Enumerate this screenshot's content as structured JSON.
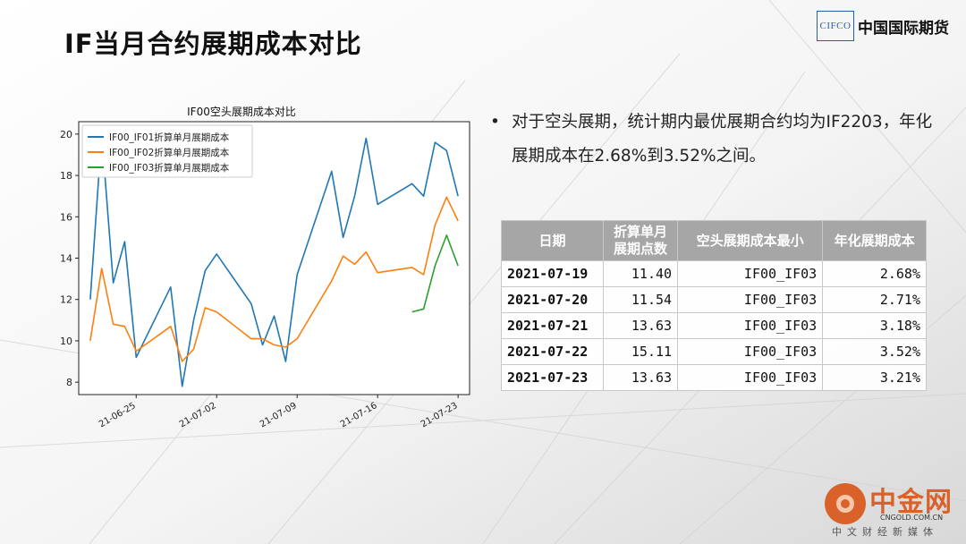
{
  "slide": {
    "title": "IF当月合约展期成本对比"
  },
  "brand": {
    "logo_text": "CIFCO",
    "name": "中国国际期货"
  },
  "bullet": {
    "symbol": "•",
    "text": "对于空头展期，统计期内最优展期合约均为IF2203，年化展期成本在2.68%到3.52%之间。"
  },
  "table": {
    "headers": [
      "日期",
      "折算单月展期点数",
      "空头展期成本最小",
      "年化展期成本"
    ],
    "rows": [
      [
        "2021-07-19",
        "11.40",
        "IF00_IF03",
        "2.68%"
      ],
      [
        "2021-07-20",
        "11.54",
        "IF00_IF03",
        "2.71%"
      ],
      [
        "2021-07-21",
        "13.63",
        "IF00_IF03",
        "3.18%"
      ],
      [
        "2021-07-22",
        "15.11",
        "IF00_IF03",
        "3.52%"
      ],
      [
        "2021-07-23",
        "13.63",
        "IF00_IF03",
        "3.21%"
      ]
    ]
  },
  "chart_data": {
    "type": "line",
    "title": "IF00空头展期成本对比",
    "xlabel": "",
    "ylabel": "",
    "x": [
      "2021-06-21",
      "2021-06-22",
      "2021-06-23",
      "2021-06-24",
      "2021-06-25",
      "2021-06-28",
      "2021-06-29",
      "2021-06-30",
      "2021-07-01",
      "2021-07-02",
      "2021-07-05",
      "2021-07-06",
      "2021-07-07",
      "2021-07-08",
      "2021-07-09",
      "2021-07-12",
      "2021-07-13",
      "2021-07-14",
      "2021-07-15",
      "2021-07-16",
      "2021-07-19",
      "2021-07-20",
      "2021-07-21",
      "2021-07-22",
      "2021-07-23"
    ],
    "x_ticks": [
      "21-06-25",
      "21-07-02",
      "21-07-09",
      "21-07-16",
      "21-07-23"
    ],
    "x_tick_dates": [
      "2021-06-25",
      "2021-07-02",
      "2021-07-09",
      "2021-07-16",
      "2021-07-23"
    ],
    "xlim": [
      "2021-06-20",
      "2021-07-24"
    ],
    "ylim": [
      7.4,
      20.6
    ],
    "y_ticks": [
      8,
      10,
      12,
      14,
      16,
      18,
      20
    ],
    "grid": false,
    "legend_position": "top-left",
    "series": [
      {
        "name": "IF00_IF01折算单月展期成本",
        "color": "#1f77b4",
        "values": [
          12.0,
          20.0,
          12.8,
          14.8,
          9.2,
          12.6,
          7.8,
          11.0,
          13.4,
          14.2,
          11.8,
          9.8,
          11.2,
          9.0,
          13.2,
          18.2,
          15.0,
          17.0,
          19.8,
          16.6,
          17.6,
          17.0,
          19.6,
          19.2,
          17.0
        ]
      },
      {
        "name": "IF00_IF02折算单月展期成本",
        "color": "#ff7f0e",
        "values": [
          10.0,
          13.5,
          10.8,
          10.7,
          9.5,
          10.7,
          9.0,
          9.6,
          11.6,
          11.4,
          10.1,
          10.1,
          9.8,
          9.7,
          10.1,
          12.9,
          14.1,
          13.7,
          14.3,
          13.3,
          13.55,
          13.2,
          15.6,
          16.95,
          15.8
        ]
      },
      {
        "name": "IF00_IF03折算单月展期成本",
        "color": "#2ca02c",
        "values": [
          null,
          null,
          null,
          null,
          null,
          null,
          null,
          null,
          null,
          null,
          null,
          null,
          null,
          null,
          null,
          null,
          null,
          null,
          null,
          null,
          11.4,
          11.54,
          13.63,
          15.11,
          13.63
        ]
      }
    ]
  },
  "watermark": {
    "name": "中金网",
    "domain": "CNGOLD.COM.CN",
    "tagline": "中文财经新媒体"
  }
}
